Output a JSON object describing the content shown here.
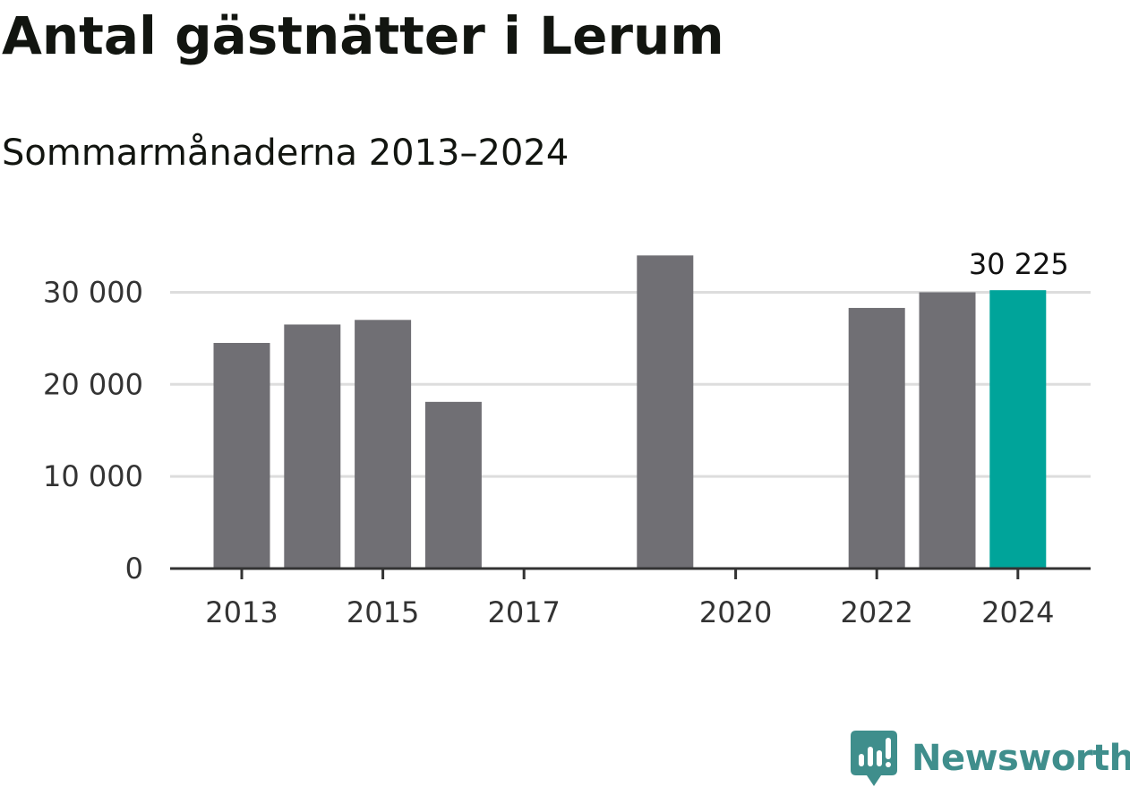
{
  "title": "Antal gästnätter i Lerum",
  "subtitle": "Sommarmånaderna 2013–2024",
  "brand": {
    "name": "Newsworthy",
    "color": "#3f8e8c",
    "icon": "newsworthy-logo-icon"
  },
  "colors": {
    "bar": "#706f74",
    "highlight": "#00a49a",
    "grid": "#dddddd",
    "axis": "#333333"
  },
  "chart_data": {
    "type": "bar",
    "categories": [
      "2013",
      "2014",
      "2015",
      "2016",
      "2017",
      "2018",
      "2019",
      "2020",
      "2021",
      "2022",
      "2023",
      "2024"
    ],
    "values": [
      24500,
      26500,
      27000,
      18100,
      null,
      null,
      34000,
      null,
      null,
      28300,
      30000,
      30225
    ],
    "highlight_category": "2024",
    "data_labels": [
      {
        "category": "2024",
        "text": "30 225"
      }
    ],
    "x_tick_labels": [
      "2013",
      "2015",
      "2017",
      "2020",
      "2022",
      "2024"
    ],
    "y_ticks": [
      {
        "value": 0,
        "label": "0"
      },
      {
        "value": 10000,
        "label": "10 000"
      },
      {
        "value": 20000,
        "label": "20 000"
      },
      {
        "value": 30000,
        "label": "30 000"
      }
    ],
    "ylim": [
      0,
      36000
    ],
    "grid": true,
    "xlabel": "",
    "ylabel": ""
  }
}
